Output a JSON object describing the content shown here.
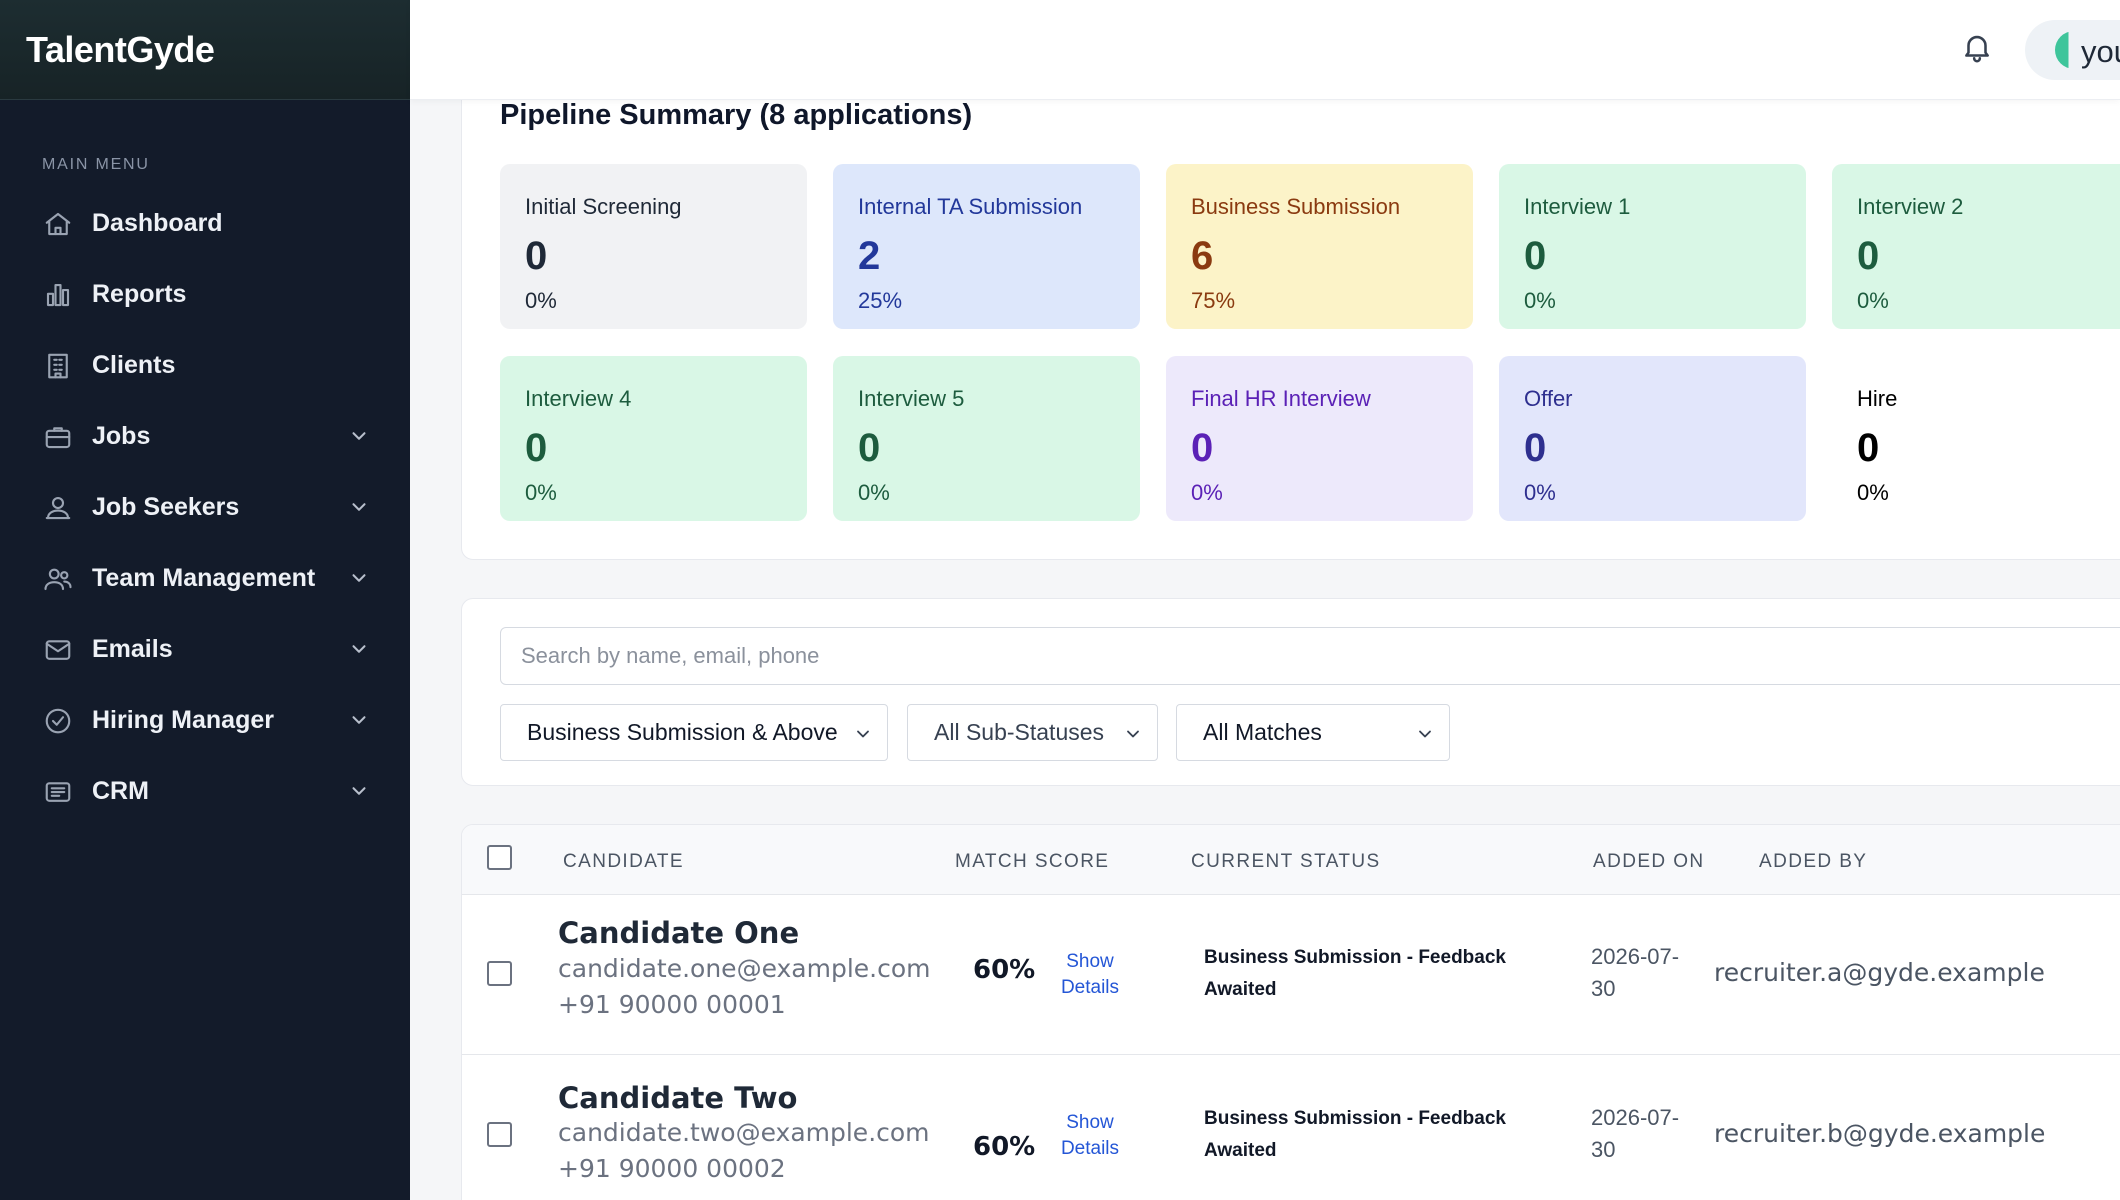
{
  "app": {
    "brand": "TalentGyde"
  },
  "sidebar": {
    "section_label": "MAIN MENU",
    "items": [
      {
        "label": "Dashboard",
        "icon": "home-icon",
        "expandable": false
      },
      {
        "label": "Reports",
        "icon": "bar-chart-icon",
        "expandable": false
      },
      {
        "label": "Clients",
        "icon": "building-icon",
        "expandable": false
      },
      {
        "label": "Jobs",
        "icon": "briefcase-icon",
        "expandable": true
      },
      {
        "label": "Job Seekers",
        "icon": "user-search-icon",
        "expandable": true
      },
      {
        "label": "Team Management",
        "icon": "users-icon",
        "expandable": true
      },
      {
        "label": "Emails",
        "icon": "mail-icon",
        "expandable": true
      },
      {
        "label": "Hiring Manager",
        "icon": "check-circle-icon",
        "expandable": true
      },
      {
        "label": "CRM",
        "icon": "id-card-icon",
        "expandable": true
      }
    ]
  },
  "header": {
    "user_label": "you",
    "bell_icon": "bell-icon"
  },
  "pipeline": {
    "title": "Pipeline Summary (8 applications)",
    "stages": [
      {
        "name": "Initial Screening",
        "count": "0",
        "pct": "0%",
        "bg": "#f1f2f4",
        "fg": "#1f2937"
      },
      {
        "name": "Internal TA Submission",
        "count": "2",
        "pct": "25%",
        "bg": "#dde7fb",
        "fg": "#22389a"
      },
      {
        "name": "Business Submission",
        "count": "6",
        "pct": "75%",
        "bg": "#fcf3c8",
        "fg": "#8a3a10"
      },
      {
        "name": "Interview 1",
        "count": "0",
        "pct": "0%",
        "bg": "#d9f7e6",
        "fg": "#1d5c3e"
      },
      {
        "name": "Interview 2",
        "count": "0",
        "pct": "0%",
        "bg": "#d9f7e6",
        "fg": "#1d5c3e"
      },
      {
        "name": "Interview 4",
        "count": "0",
        "pct": "0%",
        "bg": "#d9f7e6",
        "fg": "#1d5c3e"
      },
      {
        "name": "Interview 5",
        "count": "0",
        "pct": "0%",
        "bg": "#d9f7e6",
        "fg": "#1d5c3e"
      },
      {
        "name": "Final HR Interview",
        "count": "0",
        "pct": "0%",
        "bg": "#ede9fb",
        "fg": "#5b21b6"
      },
      {
        "name": "Offer",
        "count": "0",
        "pct": "0%",
        "bg": "#e2e6fb",
        "fg": "#2e2f8f"
      },
      {
        "name": "Hire",
        "count": "0",
        "pct": "0%",
        "bg": "#ffffff",
        "fg": "#000000"
      }
    ]
  },
  "filters": {
    "search_placeholder": "Search by name, email, phone",
    "status_filter": "Business Submission & Above",
    "substatus_filter": "All Sub-Statuses",
    "match_filter": "All Matches"
  },
  "table": {
    "columns": [
      "CANDIDATE",
      "MATCH SCORE",
      "CURRENT STATUS",
      "ADDED ON",
      "ADDED BY"
    ],
    "rows": [
      {
        "name": "Candidate One",
        "email": "candidate.one@example.com",
        "phone": "+91 90000 00001",
        "score": "60%",
        "show_details": "Show Details",
        "status": "Business Submission - Feedback Awaited",
        "added_on": "2026-07-30",
        "added_by": "recruiter.a@gyde.example"
      },
      {
        "name": "Candidate Two",
        "email": "candidate.two@example.com",
        "phone": "+91 90000 00002",
        "score": "60%",
        "show_details": "Show Details",
        "status": "Business Submission - Feedback Awaited",
        "added_on": "2026-07-30",
        "added_by": "recruiter.b@gyde.example"
      }
    ]
  }
}
